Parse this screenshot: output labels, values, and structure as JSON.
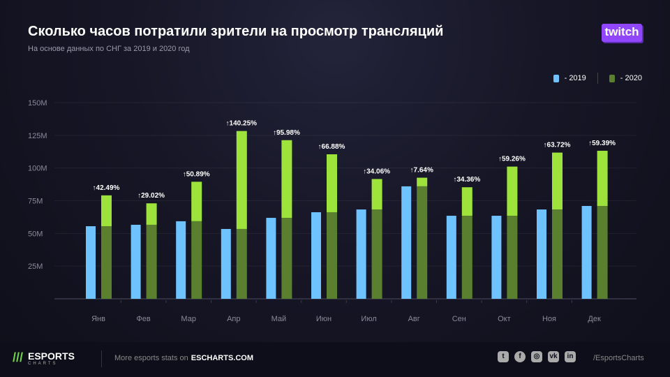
{
  "header": {
    "title": "Сколько часов потратили зрители на просмотр трансляций",
    "subtitle": "На основе данных по СНГ за 2019 и 2020 год",
    "logo": "twitch"
  },
  "legend": {
    "items": [
      {
        "label": "- 2019",
        "color": "#6ec3ff"
      },
      {
        "label": "- 2020",
        "color": "#5a7f2e"
      }
    ]
  },
  "chart_data": {
    "type": "bar",
    "categories": [
      "Янв",
      "Фев",
      "Мар",
      "Апр",
      "Май",
      "Июн",
      "Июл",
      "Авг",
      "Сен",
      "Окт",
      "Ноя",
      "Дек"
    ],
    "series": [
      {
        "name": "2019",
        "color": "#6ec3ff",
        "values": [
          55.5,
          56.6,
          59.3,
          53.4,
          61.9,
          66.2,
          68.3,
          86,
          63.5,
          63.5,
          68.3,
          71
        ]
      },
      {
        "name": "2020",
        "color": "#5a7f2e",
        "growth_color": "#9de33c",
        "values": [
          79.1,
          73.0,
          89.5,
          128.3,
          121.3,
          110.5,
          91.6,
          92.6,
          85.3,
          101.1,
          111.8,
          113.2
        ]
      }
    ],
    "growth_labels": [
      "↑42.49%",
      "↑29.02%",
      "↑50.89%",
      "↑140.25%",
      "↑95.98%",
      "↑66.88%",
      "↑34.06%",
      "↑7.64%",
      "↑34.36%",
      "↑59.26%",
      "↑63.72%",
      "↑59.39%"
    ],
    "yticks": [
      "25M",
      "50M",
      "75M",
      "100M",
      "125M",
      "150M"
    ],
    "ytick_values": [
      25,
      50,
      75,
      100,
      125,
      150
    ],
    "ylim": [
      0,
      150
    ],
    "grid": true,
    "legend": "top-right"
  },
  "footer": {
    "brand": "ESPORTS",
    "brand_sub": "CHARTS",
    "more_text": "More esports stats on",
    "site": "ESCHARTS.COM",
    "social": [
      "twitter",
      "facebook",
      "instagram",
      "vk",
      "linkedin"
    ],
    "handle": "/EsportsCharts"
  }
}
